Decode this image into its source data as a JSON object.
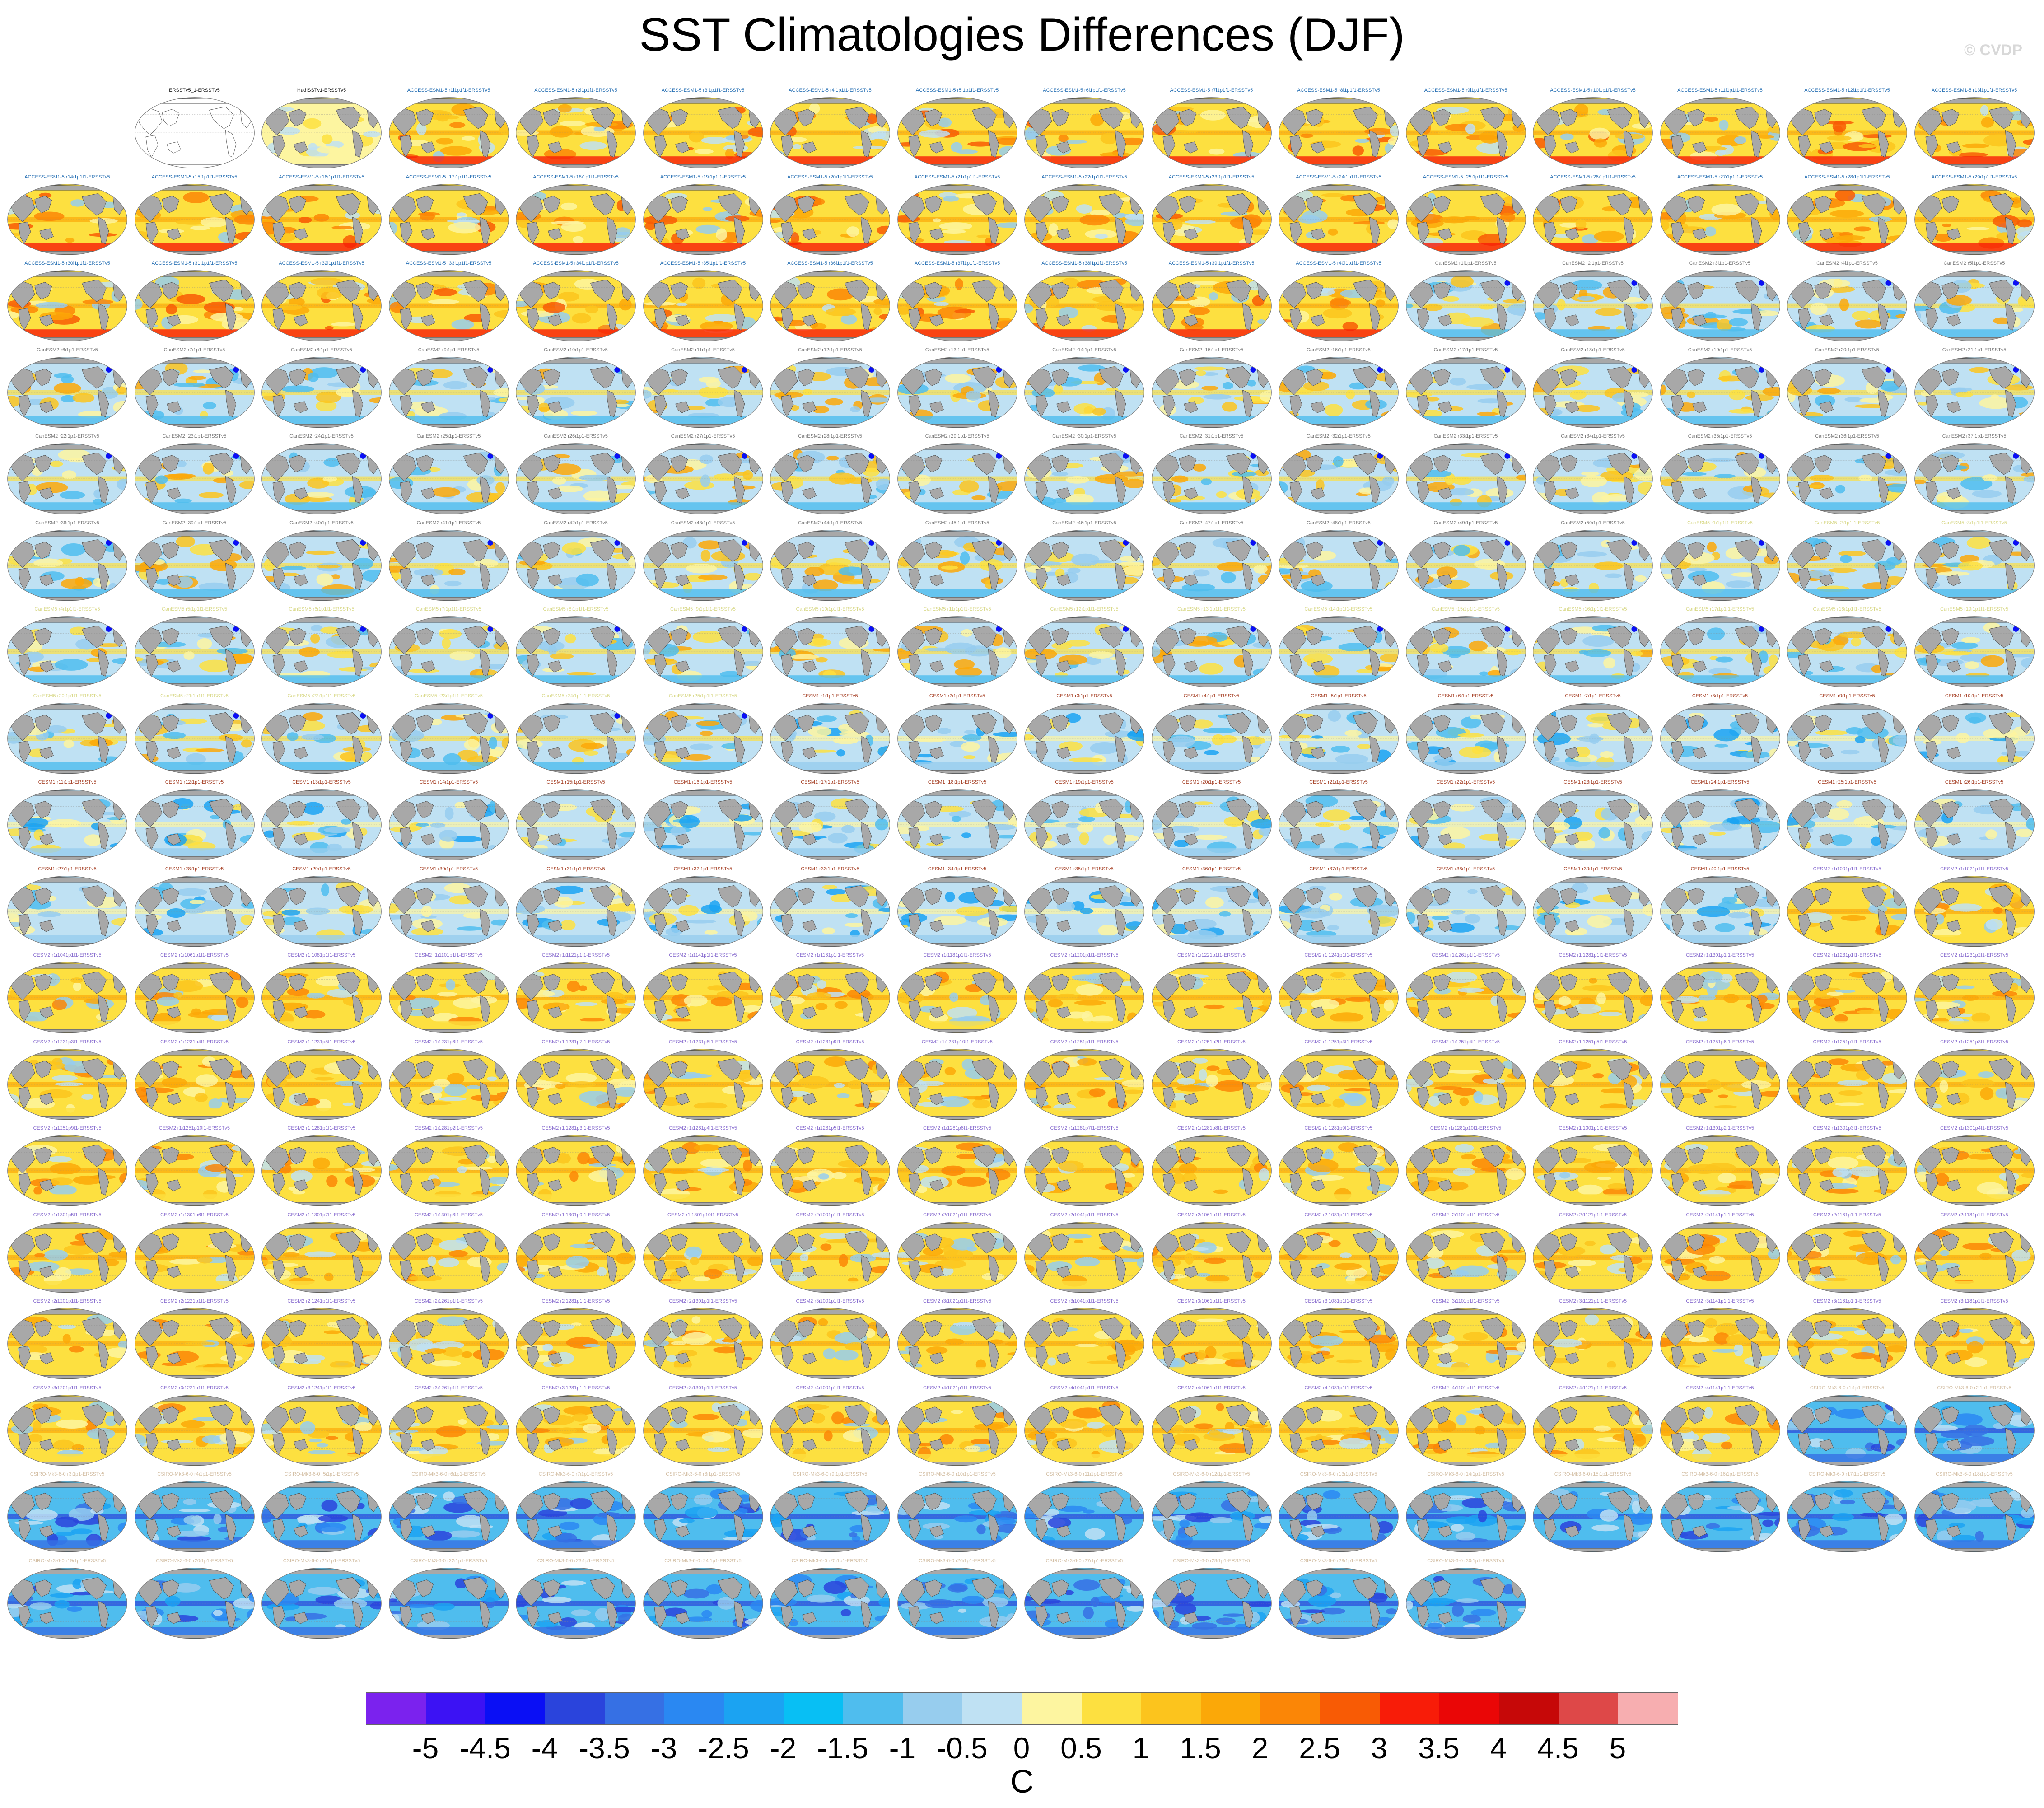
{
  "figure": {
    "title": "SST Climatologies Differences (DJF)",
    "credit": "© CVDP",
    "units": "C"
  },
  "grid": {
    "rows": 18,
    "columns": 16,
    "first_row_blank_slots": 1
  },
  "panel_groups": [
    {
      "pattern": "warm",
      "label_color": "#1a1a1a",
      "labels": [
        "ERSSTv5_1-ERSSTv5"
      ]
    },
    {
      "pattern": "reference",
      "label_color": "#1a1a1a",
      "labels": [
        "HadISSTv1-ERSSTv5"
      ]
    },
    {
      "pattern": "warm",
      "label_color": "#2a72b5",
      "labels": [
        "ACCESS-ESM1-5 r1i1p1f1-ERSSTv5",
        "ACCESS-ESM1-5 r2i1p1f1-ERSSTv5",
        "ACCESS-ESM1-5 r3i1p1f1-ERSSTv5",
        "ACCESS-ESM1-5 r4i1p1f1-ERSSTv5",
        "ACCESS-ESM1-5 r5i1p1f1-ERSSTv5",
        "ACCESS-ESM1-5 r6i1p1f1-ERSSTv5",
        "ACCESS-ESM1-5 r7i1p1f1-ERSSTv5",
        "ACCESS-ESM1-5 r8i1p1f1-ERSSTv5",
        "ACCESS-ESM1-5 r9i1p1f1-ERSSTv5",
        "ACCESS-ESM1-5 r10i1p1f1-ERSSTv5",
        "ACCESS-ESM1-5 r11i1p1f1-ERSSTv5",
        "ACCESS-ESM1-5 r12i1p1f1-ERSSTv5",
        "ACCESS-ESM1-5 r13i1p1f1-ERSSTv5",
        "ACCESS-ESM1-5 r14i1p1f1-ERSSTv5",
        "ACCESS-ESM1-5 r15i1p1f1-ERSSTv5",
        "ACCESS-ESM1-5 r16i1p1f1-ERSSTv5",
        "ACCESS-ESM1-5 r17i1p1f1-ERSSTv5",
        "ACCESS-ESM1-5 r18i1p1f1-ERSSTv5",
        "ACCESS-ESM1-5 r19i1p1f1-ERSSTv5",
        "ACCESS-ESM1-5 r20i1p1f1-ERSSTv5",
        "ACCESS-ESM1-5 r21i1p1f1-ERSSTv5",
        "ACCESS-ESM1-5 r22i1p1f1-ERSSTv5",
        "ACCESS-ESM1-5 r23i1p1f1-ERSSTv5",
        "ACCESS-ESM1-5 r24i1p1f1-ERSSTv5",
        "ACCESS-ESM1-5 r25i1p1f1-ERSSTv5",
        "ACCESS-ESM1-5 r26i1p1f1-ERSSTv5",
        "ACCESS-ESM1-5 r27i1p1f1-ERSSTv5",
        "ACCESS-ESM1-5 r28i1p1f1-ERSSTv5",
        "ACCESS-ESM1-5 r29i1p1f1-ERSSTv5",
        "ACCESS-ESM1-5 r30i1p1f1-ERSSTv5",
        "ACCESS-ESM1-5 r31i1p1f1-ERSSTv5",
        "ACCESS-ESM1-5 r32i1p1f1-ERSSTv5",
        "ACCESS-ESM1-5 r33i1p1f1-ERSSTv5",
        "ACCESS-ESM1-5 r34i1p1f1-ERSSTv5",
        "ACCESS-ESM1-5 r35i1p1f1-ERSSTv5",
        "ACCESS-ESM1-5 r36i1p1f1-ERSSTv5",
        "ACCESS-ESM1-5 r37i1p1f1-ERSSTv5",
        "ACCESS-ESM1-5 r38i1p1f1-ERSSTv5",
        "ACCESS-ESM1-5 r39i1p1f1-ERSSTv5",
        "ACCESS-ESM1-5 r40i1p1f1-ERSSTv5"
      ]
    },
    {
      "pattern": "canesm",
      "label_color": "#7c7c7c",
      "labels": [
        "CanESM2 r1i1p1-ERSSTv5",
        "CanESM2 r2i1p1-ERSSTv5",
        "CanESM2 r3i1p1-ERSSTv5",
        "CanESM2 r4i1p1-ERSSTv5",
        "CanESM2 r5i1p1-ERSSTv5",
        "CanESM2 r6i1p1-ERSSTv5",
        "CanESM2 r7i1p1-ERSSTv5",
        "CanESM2 r8i1p1-ERSSTv5",
        "CanESM2 r9i1p1-ERSSTv5",
        "CanESM2 r10i1p1-ERSSTv5",
        "CanESM2 r11i1p1-ERSSTv5",
        "CanESM2 r12i1p1-ERSSTv5",
        "CanESM2 r13i1p1-ERSSTv5",
        "CanESM2 r14i1p1-ERSSTv5",
        "CanESM2 r15i1p1-ERSSTv5",
        "CanESM2 r16i1p1-ERSSTv5",
        "CanESM2 r17i1p1-ERSSTv5",
        "CanESM2 r18i1p1-ERSSTv5",
        "CanESM2 r19i1p1-ERSSTv5",
        "CanESM2 r20i1p1-ERSSTv5",
        "CanESM2 r21i1p1-ERSSTv5",
        "CanESM2 r22i1p1-ERSSTv5",
        "CanESM2 r23i1p1-ERSSTv5",
        "CanESM2 r24i1p1-ERSSTv5",
        "CanESM2 r25i1p1-ERSSTv5",
        "CanESM2 r26i1p1-ERSSTv5",
        "CanESM2 r27i1p1-ERSSTv5",
        "CanESM2 r28i1p1-ERSSTv5",
        "CanESM2 r29i1p1-ERSSTv5",
        "CanESM2 r30i1p1-ERSSTv5",
        "CanESM2 r31i1p1-ERSSTv5",
        "CanESM2 r32i1p1-ERSSTv5",
        "CanESM2 r33i1p1-ERSSTv5",
        "CanESM2 r34i1p1-ERSSTv5",
        "CanESM2 r35i1p1-ERSSTv5",
        "CanESM2 r36i1p1-ERSSTv5",
        "CanESM2 r37i1p1-ERSSTv5",
        "CanESM2 r38i1p1-ERSSTv5",
        "CanESM2 r39i1p1-ERSSTv5",
        "CanESM2 r40i1p1-ERSSTv5",
        "CanESM2 r41i1p1-ERSSTv5",
        "CanESM2 r42i1p1-ERSSTv5",
        "CanESM2 r43i1p1-ERSSTv5",
        "CanESM2 r44i1p1-ERSSTv5",
        "CanESM2 r45i1p1-ERSSTv5",
        "CanESM2 r46i1p1-ERSSTv5",
        "CanESM2 r47i1p1-ERSSTv5",
        "CanESM2 r48i1p1-ERSSTv5",
        "CanESM2 r49i1p1-ERSSTv5",
        "CanESM2 r50i1p1-ERSSTv5"
      ]
    },
    {
      "pattern": "canesm",
      "label_color": "#d9d98a",
      "labels": [
        "CanESM5 r1i1p1f1-ERSSTv5",
        "CanESM5 r2i1p1f1-ERSSTv5",
        "CanESM5 r3i1p1f1-ERSSTv5",
        "CanESM5 r4i1p1f1-ERSSTv5",
        "CanESM5 r5i1p1f1-ERSSTv5",
        "CanESM5 r6i1p1f1-ERSSTv5",
        "CanESM5 r7i1p1f1-ERSSTv5",
        "CanESM5 r8i1p1f1-ERSSTv5",
        "CanESM5 r9i1p1f1-ERSSTv5",
        "CanESM5 r10i1p1f1-ERSSTv5",
        "CanESM5 r11i1p1f1-ERSSTv5",
        "CanESM5 r12i1p1f1-ERSSTv5",
        "CanESM5 r13i1p1f1-ERSSTv5",
        "CanESM5 r14i1p1f1-ERSSTv5",
        "CanESM5 r15i1p1f1-ERSSTv5",
        "CanESM5 r16i1p1f1-ERSSTv5",
        "CanESM5 r17i1p1f1-ERSSTv5",
        "CanESM5 r18i1p1f1-ERSSTv5",
        "CanESM5 r19i1p1f1-ERSSTv5",
        "CanESM5 r20i1p1f1-ERSSTv5",
        "CanESM5 r21i1p1f1-ERSSTv5",
        "CanESM5 r22i1p1f1-ERSSTv5",
        "CanESM5 r23i1p1f1-ERSSTv5",
        "CanESM5 r24i1p1f1-ERSSTv5",
        "CanESM5 r25i1p1f1-ERSSTv5"
      ]
    },
    {
      "pattern": "cesm1",
      "label_color": "#a8452b",
      "labels": [
        "CESM1 r1i1p1-ERSSTv5",
        "CESM1 r2i1p1-ERSSTv5",
        "CESM1 r3i1p1-ERSSTv5",
        "CESM1 r4i1p1-ERSSTv5",
        "CESM1 r5i1p1-ERSSTv5",
        "CESM1 r6i1p1-ERSSTv5",
        "CESM1 r7i1p1-ERSSTv5",
        "CESM1 r8i1p1-ERSSTv5",
        "CESM1 r9i1p1-ERSSTv5",
        "CESM1 r10i1p1-ERSSTv5",
        "CESM1 r11i1p1-ERSSTv5",
        "CESM1 r12i1p1-ERSSTv5",
        "CESM1 r13i1p1-ERSSTv5",
        "CESM1 r14i1p1-ERSSTv5",
        "CESM1 r15i1p1-ERSSTv5",
        "CESM1 r16i1p1-ERSSTv5",
        "CESM1 r17i1p1-ERSSTv5",
        "CESM1 r18i1p1-ERSSTv5",
        "CESM1 r19i1p1-ERSSTv5",
        "CESM1 r20i1p1-ERSSTv5",
        "CESM1 r21i1p1-ERSSTv5",
        "CESM1 r22i1p1-ERSSTv5",
        "CESM1 r23i1p1-ERSSTv5",
        "CESM1 r24i1p1-ERSSTv5",
        "CESM1 r25i1p1-ERSSTv5",
        "CESM1 r26i1p1-ERSSTv5",
        "CESM1 r27i1p1-ERSSTv5",
        "CESM1 r28i1p1-ERSSTv5",
        "CESM1 r29i1p1-ERSSTv5",
        "CESM1 r30i1p1-ERSSTv5",
        "CESM1 r31i1p1-ERSSTv5",
        "CESM1 r32i1p1-ERSSTv5",
        "CESM1 r33i1p1-ERSSTv5",
        "CESM1 r34i1p1-ERSSTv5",
        "CESM1 r35i1p1-ERSSTv5",
        "CESM1 r36i1p1-ERSSTv5",
        "CESM1 r37i1p1-ERSSTv5",
        "CESM1 r38i1p1-ERSSTv5",
        "CESM1 r39i1p1-ERSSTv5",
        "CESM1 r40i1p1-ERSSTv5"
      ]
    },
    {
      "pattern": "cesm2",
      "label_color": "#8a6fd0",
      "labels": [
        "CESM2 r1i1001p1f1-ERSSTv5",
        "CESM2 r1i1021p1f1-ERSSTv5",
        "CESM2 r1i1041p1f1-ERSSTv5",
        "CESM2 r1i1061p1f1-ERSSTv5",
        "CESM2 r1i1081p1f1-ERSSTv5",
        "CESM2 r1i1101p1f1-ERSSTv5",
        "CESM2 r1i1121p1f1-ERSSTv5",
        "CESM2 r1i1141p1f1-ERSSTv5",
        "CESM2 r1i1161p1f1-ERSSTv5",
        "CESM2 r1i1181p1f1-ERSSTv5",
        "CESM2 r1i1201p1f1-ERSSTv5",
        "CESM2 r1i1221p1f1-ERSSTv5",
        "CESM2 r1i1241p1f1-ERSSTv5",
        "CESM2 r1i1261p1f1-ERSSTv5",
        "CESM2 r1i1281p1f1-ERSSTv5",
        "CESM2 r1i1301p1f1-ERSSTv5",
        "CESM2 r1i1231p1f1-ERSSTv5",
        "CESM2 r1i1231p2f1-ERSSTv5",
        "CESM2 r1i1231p3f1-ERSSTv5",
        "CESM2 r1i1231p4f1-ERSSTv5",
        "CESM2 r1i1231p5f1-ERSSTv5",
        "CESM2 r1i1231p6f1-ERSSTv5",
        "CESM2 r1i1231p7f1-ERSSTv5",
        "CESM2 r1i1231p8f1-ERSSTv5",
        "CESM2 r1i1231p9f1-ERSSTv5",
        "CESM2 r1i1231p10f1-ERSSTv5",
        "CESM2 r1i1251p1f1-ERSSTv5",
        "CESM2 r1i1251p2f1-ERSSTv5",
        "CESM2 r1i1251p3f1-ERSSTv5",
        "CESM2 r1i1251p4f1-ERSSTv5",
        "CESM2 r1i1251p5f1-ERSSTv5",
        "CESM2 r1i1251p6f1-ERSSTv5",
        "CESM2 r1i1251p7f1-ERSSTv5",
        "CESM2 r1i1251p8f1-ERSSTv5",
        "CESM2 r1i1251p9f1-ERSSTv5",
        "CESM2 r1i1251p10f1-ERSSTv5",
        "CESM2 r1i1281p1f1-ERSSTv5",
        "CESM2 r1i1281p2f1-ERSSTv5",
        "CESM2 r1i1281p3f1-ERSSTv5",
        "CESM2 r1i1281p4f1-ERSSTv5",
        "CESM2 r1i1281p5f1-ERSSTv5",
        "CESM2 r1i1281p6f1-ERSSTv5",
        "CESM2 r1i1281p7f1-ERSSTv5",
        "CESM2 r1i1281p8f1-ERSSTv5",
        "CESM2 r1i1281p9f1-ERSSTv5",
        "CESM2 r1i1281p10f1-ERSSTv5",
        "CESM2 r1i1301p1f1-ERSSTv5",
        "CESM2 r1i1301p2f1-ERSSTv5",
        "CESM2 r1i1301p3f1-ERSSTv5",
        "CESM2 r1i1301p4f1-ERSSTv5",
        "CESM2 r1i1301p5f1-ERSSTv5",
        "CESM2 r1i1301p6f1-ERSSTv5",
        "CESM2 r1i1301p7f1-ERSSTv5",
        "CESM2 r1i1301p8f1-ERSSTv5",
        "CESM2 r1i1301p9f1-ERSSTv5",
        "CESM2 r1i1301p10f1-ERSSTv5",
        "CESM2 r2i1001p1f1-ERSSTv5",
        "CESM2 r2i1021p1f1-ERSSTv5",
        "CESM2 r2i1041p1f1-ERSSTv5",
        "CESM2 r2i1061p1f1-ERSSTv5",
        "CESM2 r2i1081p1f1-ERSSTv5",
        "CESM2 r2i1101p1f1-ERSSTv5",
        "CESM2 r2i1121p1f1-ERSSTv5",
        "CESM2 r2i1141p1f1-ERSSTv5",
        "CESM2 r2i1161p1f1-ERSSTv5",
        "CESM2 r2i1181p1f1-ERSSTv5",
        "CESM2 r2i1201p1f1-ERSSTv5",
        "CESM2 r2i1221p1f1-ERSSTv5",
        "CESM2 r2i1241p1f1-ERSSTv5",
        "CESM2 r2i1261p1f1-ERSSTv5",
        "CESM2 r2i1281p1f1-ERSSTv5",
        "CESM2 r2i1301p1f1-ERSSTv5",
        "CESM2 r3i1001p1f1-ERSSTv5",
        "CESM2 r3i1021p1f1-ERSSTv5",
        "CESM2 r3i1041p1f1-ERSSTv5",
        "CESM2 r3i1061p1f1-ERSSTv5",
        "CESM2 r3i1081p1f1-ERSSTv5",
        "CESM2 r3i1101p1f1-ERSSTv5",
        "CESM2 r3i1121p1f1-ERSSTv5",
        "CESM2 r3i1141p1f1-ERSSTv5",
        "CESM2 r3i1161p1f1-ERSSTv5",
        "CESM2 r3i1181p1f1-ERSSTv5",
        "CESM2 r3i1201p1f1-ERSSTv5",
        "CESM2 r3i1221p1f1-ERSSTv5",
        "CESM2 r3i1241p1f1-ERSSTv5",
        "CESM2 r3i1261p1f1-ERSSTv5",
        "CESM2 r3i1281p1f1-ERSSTv5",
        "CESM2 r3i1301p1f1-ERSSTv5",
        "CESM2 r4i1001p1f1-ERSSTv5",
        "CESM2 r4i1021p1f1-ERSSTv5",
        "CESM2 r4i1041p1f1-ERSSTv5",
        "CESM2 r4i1061p1f1-ERSSTv5",
        "CESM2 r4i1081p1f1-ERSSTv5",
        "CESM2 r4i1101p1f1-ERSSTv5",
        "CESM2 r4i1121p1f1-ERSSTv5",
        "CESM2 r4i1141p1f1-ERSSTv5"
      ]
    },
    {
      "pattern": "cold",
      "label_color": "#d4c0a6",
      "labels": [
        "CSIRO-Mk3-6-0 r1i1p1-ERSSTv5",
        "CSIRO-Mk3-6-0 r2i1p1-ERSSTv5",
        "CSIRO-Mk3-6-0 r3i1p1-ERSSTv5",
        "CSIRO-Mk3-6-0 r4i1p1-ERSSTv5",
        "CSIRO-Mk3-6-0 r5i1p1-ERSSTv5",
        "CSIRO-Mk3-6-0 r6i1p1-ERSSTv5",
        "CSIRO-Mk3-6-0 r7i1p1-ERSSTv5",
        "CSIRO-Mk3-6-0 r8i1p1-ERSSTv5",
        "CSIRO-Mk3-6-0 r9i1p1-ERSSTv5",
        "CSIRO-Mk3-6-0 r10i1p1-ERSSTv5",
        "CSIRO-Mk3-6-0 r11i1p1-ERSSTv5",
        "CSIRO-Mk3-6-0 r12i1p1-ERSSTv5",
        "CSIRO-Mk3-6-0 r13i1p1-ERSSTv5",
        "CSIRO-Mk3-6-0 r14i1p1-ERSSTv5",
        "CSIRO-Mk3-6-0 r15i1p1-ERSSTv5",
        "CSIRO-Mk3-6-0 r16i1p1-ERSSTv5",
        "CSIRO-Mk3-6-0 r17i1p1-ERSSTv5",
        "CSIRO-Mk3-6-0 r18i1p1-ERSSTv5",
        "CSIRO-Mk3-6-0 r19i1p1-ERSSTv5",
        "CSIRO-Mk3-6-0 r20i1p1-ERSSTv5",
        "CSIRO-Mk3-6-0 r21i1p1-ERSSTv5",
        "CSIRO-Mk3-6-0 r22i1p1-ERSSTv5",
        "CSIRO-Mk3-6-0 r23i1p1-ERSSTv5",
        "CSIRO-Mk3-6-0 r24i1p1-ERSSTv5",
        "CSIRO-Mk3-6-0 r25i1p1-ERSSTv5",
        "CSIRO-Mk3-6-0 r26i1p1-ERSSTv5",
        "CSIRO-Mk3-6-0 r27i1p1-ERSSTv5",
        "CSIRO-Mk3-6-0 r28i1p1-ERSSTv5",
        "CSIRO-Mk3-6-0 r29i1p1-ERSSTv5",
        "CSIRO-Mk3-6-0 r30i1p1-ERSSTv5"
      ]
    }
  ],
  "colorbar": {
    "colors": [
      "#7b22ee",
      "#3c12f4",
      "#0a0ff5",
      "#2a44dc",
      "#3670e4",
      "#2a88f2",
      "#1ba3f2",
      "#08bff4",
      "#4fbdee",
      "#97cdee",
      "#bfe1f3",
      "#fdf5a0",
      "#fde040",
      "#fcc41d",
      "#fba808",
      "#fb8606",
      "#f85b05",
      "#f81c08",
      "#ea0606",
      "#c60808",
      "#de4848",
      "#f7aeb0"
    ],
    "tick_labels": [
      "-5",
      "-4.5",
      "-4",
      "-3.5",
      "-3",
      "-2.5",
      "-2",
      "-1.5",
      "-1",
      "-0.5",
      "0",
      "0.5",
      "1",
      "1.5",
      "2",
      "2.5",
      "3",
      "3.5",
      "4",
      "4.5",
      "5"
    ]
  },
  "map_style": {
    "land": "#a8a8a8",
    "ocean_edge": "#7a7a7a",
    "grid_line": "#888888"
  }
}
